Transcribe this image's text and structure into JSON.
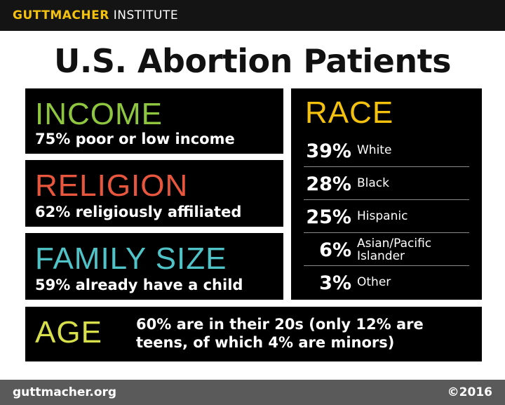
{
  "header": {
    "brand_bold": "GUTTMACHER",
    "brand_rest": " INSTITUTE",
    "title": "U.S. Abortion Patients"
  },
  "income": {
    "heading": "INCOME",
    "stat": "75% poor or low income",
    "color": "#8ec63f"
  },
  "religion": {
    "heading": "RELIGION",
    "stat": "62% religiously affiliated",
    "color": "#e8573d"
  },
  "family": {
    "heading": "FAMILY SIZE",
    "stat": "59% already have a child",
    "color": "#4fc3c7"
  },
  "race": {
    "heading": "RACE",
    "color": "#f4c20d",
    "rows": [
      {
        "pct": "39%",
        "label": "White"
      },
      {
        "pct": "28%",
        "label": "Black"
      },
      {
        "pct": "25%",
        "label": "Hispanic"
      },
      {
        "pct": "6%",
        "label": "Asian/Pacific Islander"
      },
      {
        "pct": "3%",
        "label": "Other"
      }
    ]
  },
  "age": {
    "heading": "AGE",
    "stat": "60% are in their 20s (only 12% are teens, of which 4% are minors)",
    "color": "#d7e04a"
  },
  "footer": {
    "site": "guttmacher.org",
    "copyright": "©2016"
  }
}
